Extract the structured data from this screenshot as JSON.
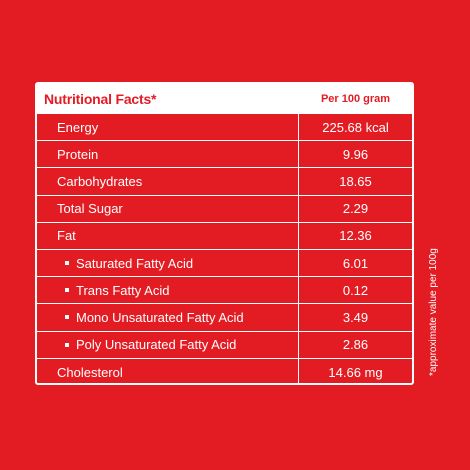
{
  "table": {
    "title": "Nutritional Facts*",
    "unit_header": "Per 100 gram",
    "rows": [
      {
        "name": "Energy",
        "value": "225.68 kcal"
      },
      {
        "name": "Protein",
        "value": "9.96"
      },
      {
        "name": "Carbohydrates",
        "value": "18.65"
      },
      {
        "name": "Total Sugar",
        "value": "2.29"
      },
      {
        "name": "Fat",
        "value": "12.36"
      },
      {
        "name": "Saturated Fatty Acid",
        "value": "6.01"
      },
      {
        "name": "Trans Fatty Acid",
        "value": "0.12"
      },
      {
        "name": "Mono Unsaturated Fatty Acid",
        "value": "3.49"
      },
      {
        "name": "Poly Unsaturated Fatty Acid",
        "value": "2.86"
      },
      {
        "name": "Cholesterol",
        "value": "14.66 mg"
      }
    ]
  },
  "footnote": "*approximate value per 100g",
  "colors": {
    "background": "#e31b23",
    "text": "#ffffff"
  }
}
